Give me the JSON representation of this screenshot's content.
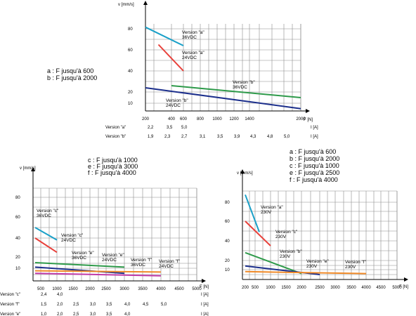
{
  "chart_data": [
    {
      "type": "line",
      "ylabel": "v [mm/s]",
      "xlabel": "F [N]",
      "ylim": [
        0,
        95
      ],
      "y_ticks": [
        10,
        20,
        40,
        60,
        80
      ],
      "x_ticks": [
        200,
        400,
        600,
        800,
        1000,
        1200,
        1400,
        2000
      ],
      "notes": [
        "a : F jusqu'à   600",
        "b : F jusqu'à 2000"
      ],
      "series": [
        {
          "name": "Version \"a\" 36VDC",
          "color": "#1aa0c8",
          "x": [
            200,
            600
          ],
          "y": [
            85,
            64
          ]
        },
        {
          "name": "Version \"a\" 24VDC",
          "color": "#e8403a",
          "x": [
            300,
            600
          ],
          "y": [
            65,
            40
          ]
        },
        {
          "name": "Version \"b\" 36VDC",
          "color": "#2e9a4a",
          "x": [
            400,
            2000
          ],
          "y": [
            26,
            15
          ]
        },
        {
          "name": "Version \"b\" 24VDC",
          "color": "#1c2f8c",
          "x": [
            200,
            2000
          ],
          "y": [
            24,
            3
          ]
        }
      ],
      "current_rows": [
        {
          "label": "Version \"a\"",
          "unit": "I [A]",
          "values": [
            "2,2",
            "3,5",
            "5,0"
          ]
        },
        {
          "label": "Version \"b\"",
          "unit": "I [A]",
          "values": [
            "1,9",
            "2,3",
            "2,7",
            "3,1",
            "3,5",
            "3,9",
            "4,3",
            "4,8",
            "5,0"
          ]
        }
      ]
    },
    {
      "type": "line",
      "ylabel": "v [mm/s]",
      "xlabel": "F [N]",
      "ylim": [
        0,
        95
      ],
      "y_ticks": [
        10,
        20,
        40,
        60,
        80
      ],
      "x_ticks": [
        500,
        1000,
        1500,
        2000,
        2500,
        3000,
        3500,
        4000,
        4500,
        5000
      ],
      "notes": [
        "c : F jusqu'à 1000",
        "e : F jusqu'à 3000",
        "f : F jusqu'à 4000"
      ],
      "series": [
        {
          "name": "Version \"c\" 36VDC",
          "color": "#1aa0c8",
          "x": [
            400,
            1000
          ],
          "y": [
            50,
            38
          ]
        },
        {
          "name": "Version \"c\" 24VDC",
          "color": "#e8403a",
          "x": [
            400,
            1000
          ],
          "y": [
            40,
            25
          ]
        },
        {
          "name": "Version \"e\" 36VDC",
          "color": "#2e9a4a",
          "x": [
            400,
            3000
          ],
          "y": [
            15,
            11
          ]
        },
        {
          "name": "Version \"e\" 24VDC",
          "color": "#1c2f8c",
          "x": [
            400,
            3000
          ],
          "y": [
            11,
            6
          ]
        },
        {
          "name": "Version \"f\" 36VDC",
          "color": "#f08a28",
          "x": [
            400,
            4000
          ],
          "y": [
            8,
            7
          ]
        },
        {
          "name": "Version \"f\" 24VDC",
          "color": "#c03aa8",
          "x": [
            400,
            4000
          ],
          "y": [
            6,
            4
          ]
        }
      ],
      "current_rows": [
        {
          "label": "Version \"c\"",
          "unit": "I [A]",
          "values": [
            "2,4",
            "4,0"
          ]
        },
        {
          "label": "Version \"f\"",
          "unit": "I [A]",
          "values": [
            "1,5",
            "2,0",
            "2,5",
            "3,0",
            "3,5",
            "4,0",
            "4,5",
            "5,0"
          ]
        },
        {
          "label": "Version \"e\"",
          "unit": "I [A]",
          "values": [
            "1,0",
            "2,0",
            "2,5",
            "3,0",
            "3,5",
            "4,0"
          ]
        }
      ]
    },
    {
      "type": "line",
      "ylabel": "v [mm/s]",
      "xlabel": "F [N]",
      "ylim": [
        0,
        95
      ],
      "y_ticks": [
        10,
        20,
        40,
        60,
        80
      ],
      "x_ticks": [
        200,
        500,
        1000,
        1500,
        2000,
        2500,
        3000,
        3500,
        4000,
        4500,
        5000
      ],
      "notes": [
        "a : F jusqu'à   600",
        "b : F jusqu'à 2000",
        "c : F jusqu'à 1000",
        "e : F jusqu'à 2500",
        "f : F jusqu'à 4000"
      ],
      "series": [
        {
          "name": "Version \"a\" 230V",
          "color": "#1aa0c8",
          "x": [
            200,
            600
          ],
          "y": [
            90,
            49
          ]
        },
        {
          "name": "Version \"c\" 230V",
          "color": "#e8403a",
          "x": [
            200,
            1000
          ],
          "y": [
            60,
            35
          ]
        },
        {
          "name": "Version \"b\" 230V",
          "color": "#2e9a4a",
          "x": [
            200,
            2000
          ],
          "y": [
            28,
            6
          ]
        },
        {
          "name": "Version \"e\" 230V",
          "color": "#1c2f8c",
          "x": [
            200,
            2500
          ],
          "y": [
            14,
            5
          ]
        },
        {
          "name": "Version \"f\" 230V",
          "color": "#f08a28",
          "x": [
            200,
            4000
          ],
          "y": [
            8,
            6
          ]
        }
      ]
    }
  ]
}
